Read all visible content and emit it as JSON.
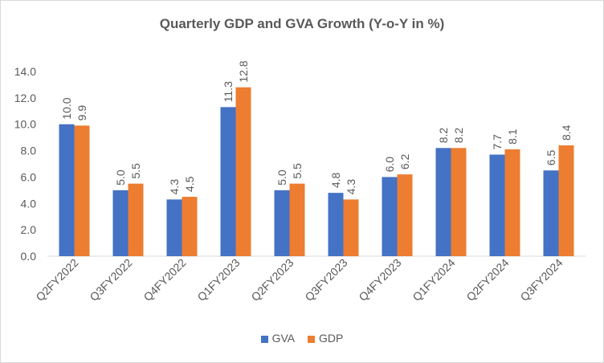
{
  "chart_data": {
    "type": "bar",
    "title": "Quarterly GDP and GVA Growth (Y-o-Y in %)",
    "xlabel": "",
    "ylabel": "",
    "ylim": [
      0,
      14
    ],
    "yticks": [
      "0.0",
      "2.0",
      "4.0",
      "6.0",
      "8.0",
      "10.0",
      "12.0",
      "14.0"
    ],
    "categories": [
      "Q2FY2022",
      "Q3FY2022",
      "Q4FY2022",
      "Q1FY2023",
      "Q2FY2023",
      "Q3FY2023",
      "Q4FY2023",
      "Q1FY2024",
      "Q2FY2024",
      "Q3FY2024"
    ],
    "series": [
      {
        "name": "GVA",
        "color": "#4472c4",
        "values": [
          10.0,
          5.0,
          4.3,
          11.3,
          5.0,
          4.8,
          6.0,
          8.2,
          7.7,
          6.5
        ],
        "labels": [
          "10.0",
          "5.0",
          "4.3",
          "11.3",
          "5.0",
          "4.8",
          "6.0",
          "8.2",
          "7.7",
          "6.5"
        ]
      },
      {
        "name": "GDP",
        "color": "#ed7d31",
        "values": [
          9.9,
          5.5,
          4.5,
          12.8,
          5.5,
          4.3,
          6.2,
          8.2,
          8.1,
          8.4
        ],
        "labels": [
          "9.9",
          "5.5",
          "4.5",
          "12.8",
          "5.5",
          "4.3",
          "6.2",
          "8.2",
          "8.1",
          "8.4"
        ]
      }
    ],
    "grid": false,
    "legend": "bottom"
  }
}
